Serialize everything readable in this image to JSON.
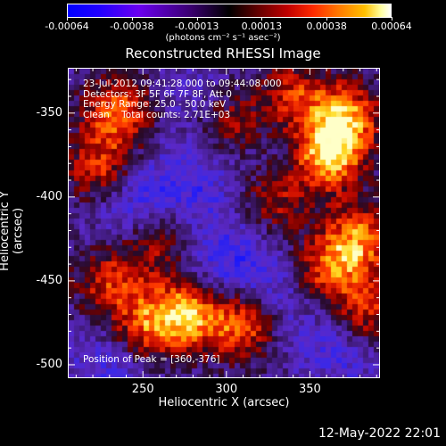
{
  "colorbar": {
    "ticks": [
      "-0.00064",
      "-0.00038",
      "-0.00013",
      "0.00013",
      "0.00038",
      "0.00064"
    ],
    "units": "(photons cm⁻² s⁻¹ asec⁻²)"
  },
  "chart_data": {
    "type": "heatmap",
    "title": "Reconstructed RHESSI Image",
    "xlabel": "Heliocentric X (arcsec)",
    "ylabel": "Heliocentric Y (arcsec)",
    "xlim": [
      205,
      392
    ],
    "ylim": [
      -508,
      -323
    ],
    "xticks": [
      "250",
      "300",
      "350"
    ],
    "yticks": [
      "-350",
      "-400",
      "-450",
      "-500"
    ],
    "xtick_values": [
      250,
      300,
      350
    ],
    "ytick_values": [
      -350,
      -400,
      -450,
      -500
    ],
    "colorbar_range": [
      -0.00064,
      0.00064
    ],
    "colormap": "blue-purple-black-red-yellow-white",
    "peak": [
      360,
      -376
    ],
    "bright_regions": [
      {
        "x": 360,
        "y": -376,
        "level": 1.0
      },
      {
        "x": 372,
        "y": -353,
        "level": 0.8
      },
      {
        "x": 235,
        "y": -350,
        "level": 0.75
      },
      {
        "x": 225,
        "y": -385,
        "level": 0.7
      },
      {
        "x": 275,
        "y": -470,
        "level": 0.85
      },
      {
        "x": 310,
        "y": -475,
        "level": 0.8
      },
      {
        "x": 250,
        "y": -478,
        "level": 0.6
      },
      {
        "x": 340,
        "y": -340,
        "level": 0.55
      },
      {
        "x": 380,
        "y": -425,
        "level": 0.75
      },
      {
        "x": 360,
        "y": -445,
        "level": 0.65
      },
      {
        "x": 385,
        "y": -470,
        "level": 0.6
      },
      {
        "x": 330,
        "y": -400,
        "level": 0.5
      },
      {
        "x": 260,
        "y": -425,
        "level": 0.45
      },
      {
        "x": 230,
        "y": -450,
        "level": 0.55
      },
      {
        "x": 300,
        "y": -355,
        "level": 0.5
      }
    ],
    "dark_regions": [
      {
        "x": 240,
        "y": -400,
        "level": -0.8
      },
      {
        "x": 280,
        "y": -395,
        "level": -0.6
      },
      {
        "x": 300,
        "y": -440,
        "level": -0.7
      },
      {
        "x": 330,
        "y": -460,
        "level": -0.6
      },
      {
        "x": 370,
        "y": -490,
        "level": -0.6
      },
      {
        "x": 230,
        "y": -500,
        "level": -0.55
      },
      {
        "x": 285,
        "y": -345,
        "level": -0.45
      },
      {
        "x": 340,
        "y": -380,
        "level": -0.4
      }
    ]
  },
  "annotations": {
    "time": "23-Jul-2012 09:41:28.000 to 09:44:08.000",
    "detectors": "Detectors: 3F 5F 6F 7F 8F, Att 0",
    "energy": "Energy Range: 25.0 - 50.0 keV",
    "clean": "Clean    Total counts: 2.71E+03",
    "peak": "Position of Peak = [360,-376]"
  },
  "date_stamp": "12-May-2022 22:01"
}
